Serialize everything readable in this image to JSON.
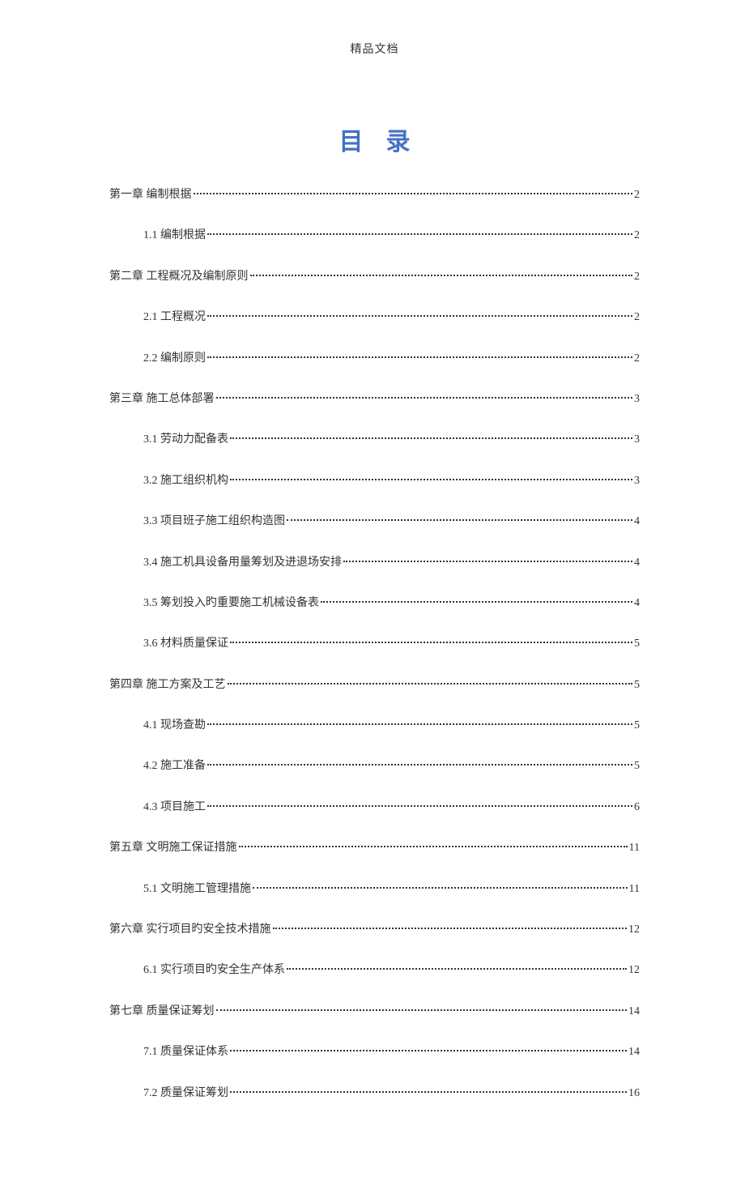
{
  "header": "精品文档",
  "title": "目录",
  "colors": {
    "title_color": "#4472C4",
    "text_color": "#333333",
    "background_color": "#ffffff"
  },
  "typography": {
    "header_fontsize": 14,
    "title_fontsize": 30,
    "toc_fontsize": 14,
    "font_family": "SimSun"
  },
  "toc_entries": [
    {
      "level": 1,
      "label": "第一章  编制根据",
      "page": "2"
    },
    {
      "level": 2,
      "label": "1.1 编制根据",
      "page": "2"
    },
    {
      "level": 1,
      "label": "第二章  工程概况及编制原则",
      "page": "2"
    },
    {
      "level": 2,
      "label": "2.1 工程概况",
      "page": "2"
    },
    {
      "level": 2,
      "label": "2.2  编制原则",
      "page": "2"
    },
    {
      "level": 1,
      "label": "第三章  施工总体部署",
      "page": "3"
    },
    {
      "level": 2,
      "label": "3.1  劳动力配备表",
      "page": "3"
    },
    {
      "level": 2,
      "label": "3.2  施工组织机构",
      "page": "3"
    },
    {
      "level": 2,
      "label": "3.3  项目班子施工组织构造图",
      "page": "4"
    },
    {
      "level": 2,
      "label": "3.4  施工机具设备用量筹划及进退场安排",
      "page": "4"
    },
    {
      "level": 2,
      "label": "3.5  筹划投入旳重要施工机械设备表",
      "page": "4"
    },
    {
      "level": 2,
      "label": "3.6  材料质量保证",
      "page": "5"
    },
    {
      "level": 1,
      "label": "第四章  施工方案及工艺",
      "page": "5"
    },
    {
      "level": 2,
      "label": "4.1  现场查勘",
      "page": "5"
    },
    {
      "level": 2,
      "label": "4.2  施工准备",
      "page": "5"
    },
    {
      "level": 2,
      "label": "4.3  项目施工",
      "page": "6"
    },
    {
      "level": 1,
      "label": "第五章  文明施工保证措施",
      "page": "11"
    },
    {
      "level": 2,
      "label": "5.1 文明施工管理措施",
      "page": "11"
    },
    {
      "level": 1,
      "label": "第六章  实行项目旳安全技术措施",
      "page": "12"
    },
    {
      "level": 2,
      "label": "6.1  实行项目旳安全生产体系",
      "page": "12"
    },
    {
      "level": 1,
      "label": "第七章  质量保证筹划",
      "page": "14"
    },
    {
      "level": 2,
      "label": "7.1 质量保证体系",
      "page": "14"
    },
    {
      "level": 2,
      "label": "7.2  质量保证筹划",
      "page": "16"
    }
  ]
}
